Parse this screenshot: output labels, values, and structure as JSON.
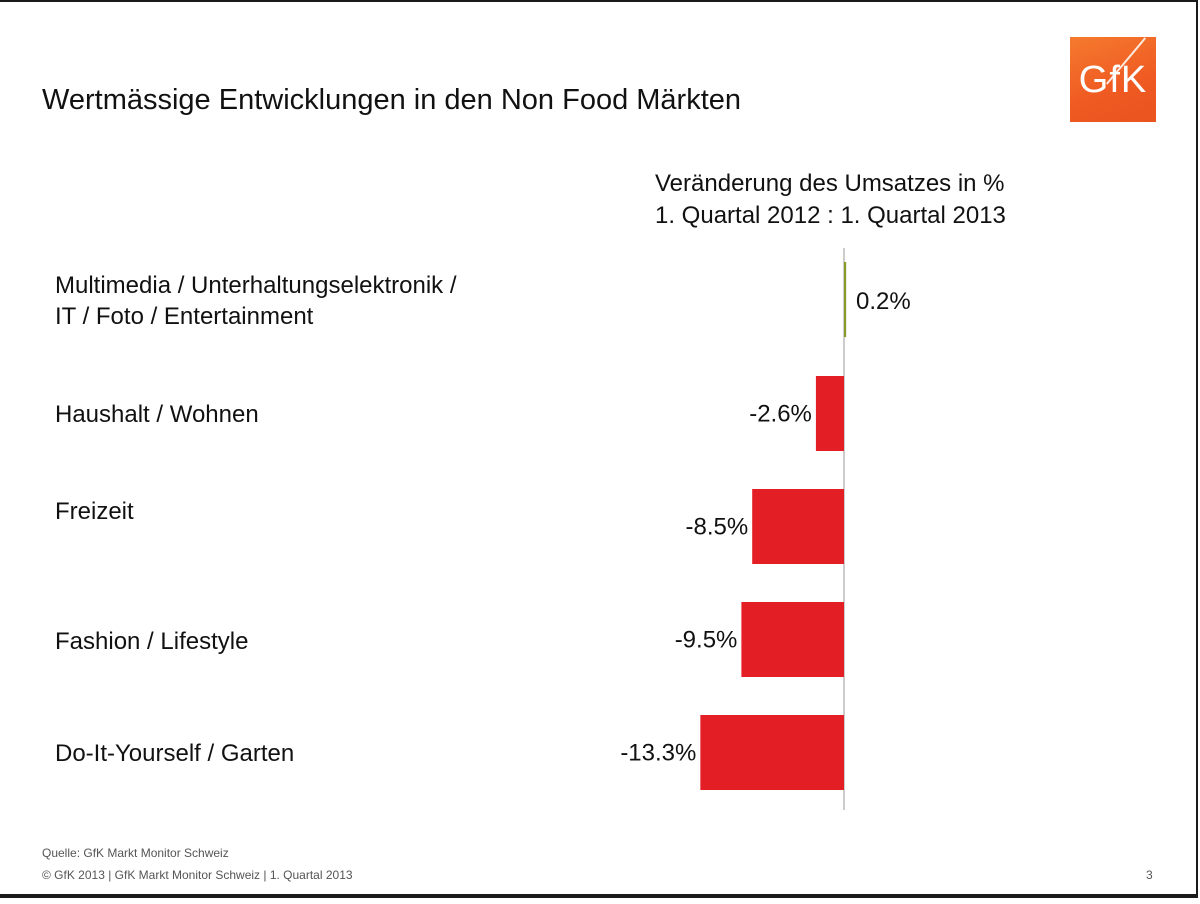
{
  "slide": {
    "title": "Wertmässige Entwicklungen in den Non Food Märkten",
    "logo_text": "GfK",
    "source": "Quelle: GfK Markt Monitor Schweiz",
    "footer": "© GfK 2013 | GfK Markt Monitor Schweiz | 1. Quartal  2013",
    "page_number": "3"
  },
  "chart_data": {
    "type": "bar",
    "orientation": "horizontal",
    "title": "Veränderung des Umsatzes in %",
    "subtitle": "1. Quartal 2012 : 1. Quartal 2013",
    "categories": [
      "Multimedia / Unterhaltungselektronik /\nIT / Foto / Entertainment",
      "Haushalt / Wohnen",
      "Freizeit",
      "Fashion / Lifestyle",
      "Do-It-Yourself / Garten"
    ],
    "values": [
      0.2,
      -2.6,
      -8.5,
      -9.5,
      -13.3
    ],
    "data_labels": [
      "0.2%",
      "-2.6%",
      "-8.5%",
      "-9.5%",
      "-13.3%"
    ],
    "colors": {
      "positive": "#8a9a2a",
      "negative": "#e31e24"
    },
    "grid": false,
    "legend": "none"
  }
}
